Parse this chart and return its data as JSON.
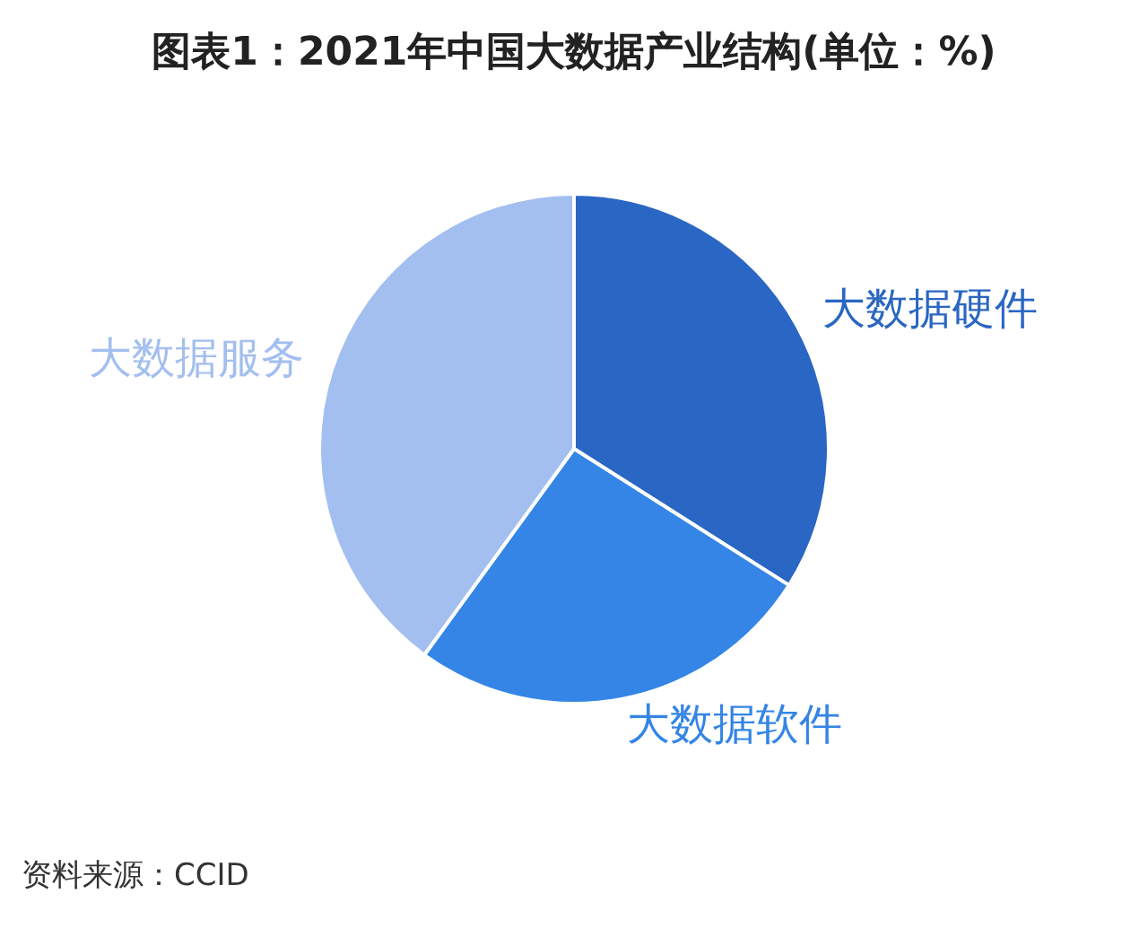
{
  "chart_data": {
    "type": "pie",
    "title": "图表1：2021年中国大数据产业结构(单位：%)",
    "categories": [
      "大数据硬件",
      "大数据软件",
      "大数据服务"
    ],
    "values": [
      34,
      26,
      40
    ],
    "colors": [
      "#2a66c3",
      "#3485e5",
      "#a3bff0"
    ],
    "annotations": [
      "资料来源：CCID"
    ]
  }
}
